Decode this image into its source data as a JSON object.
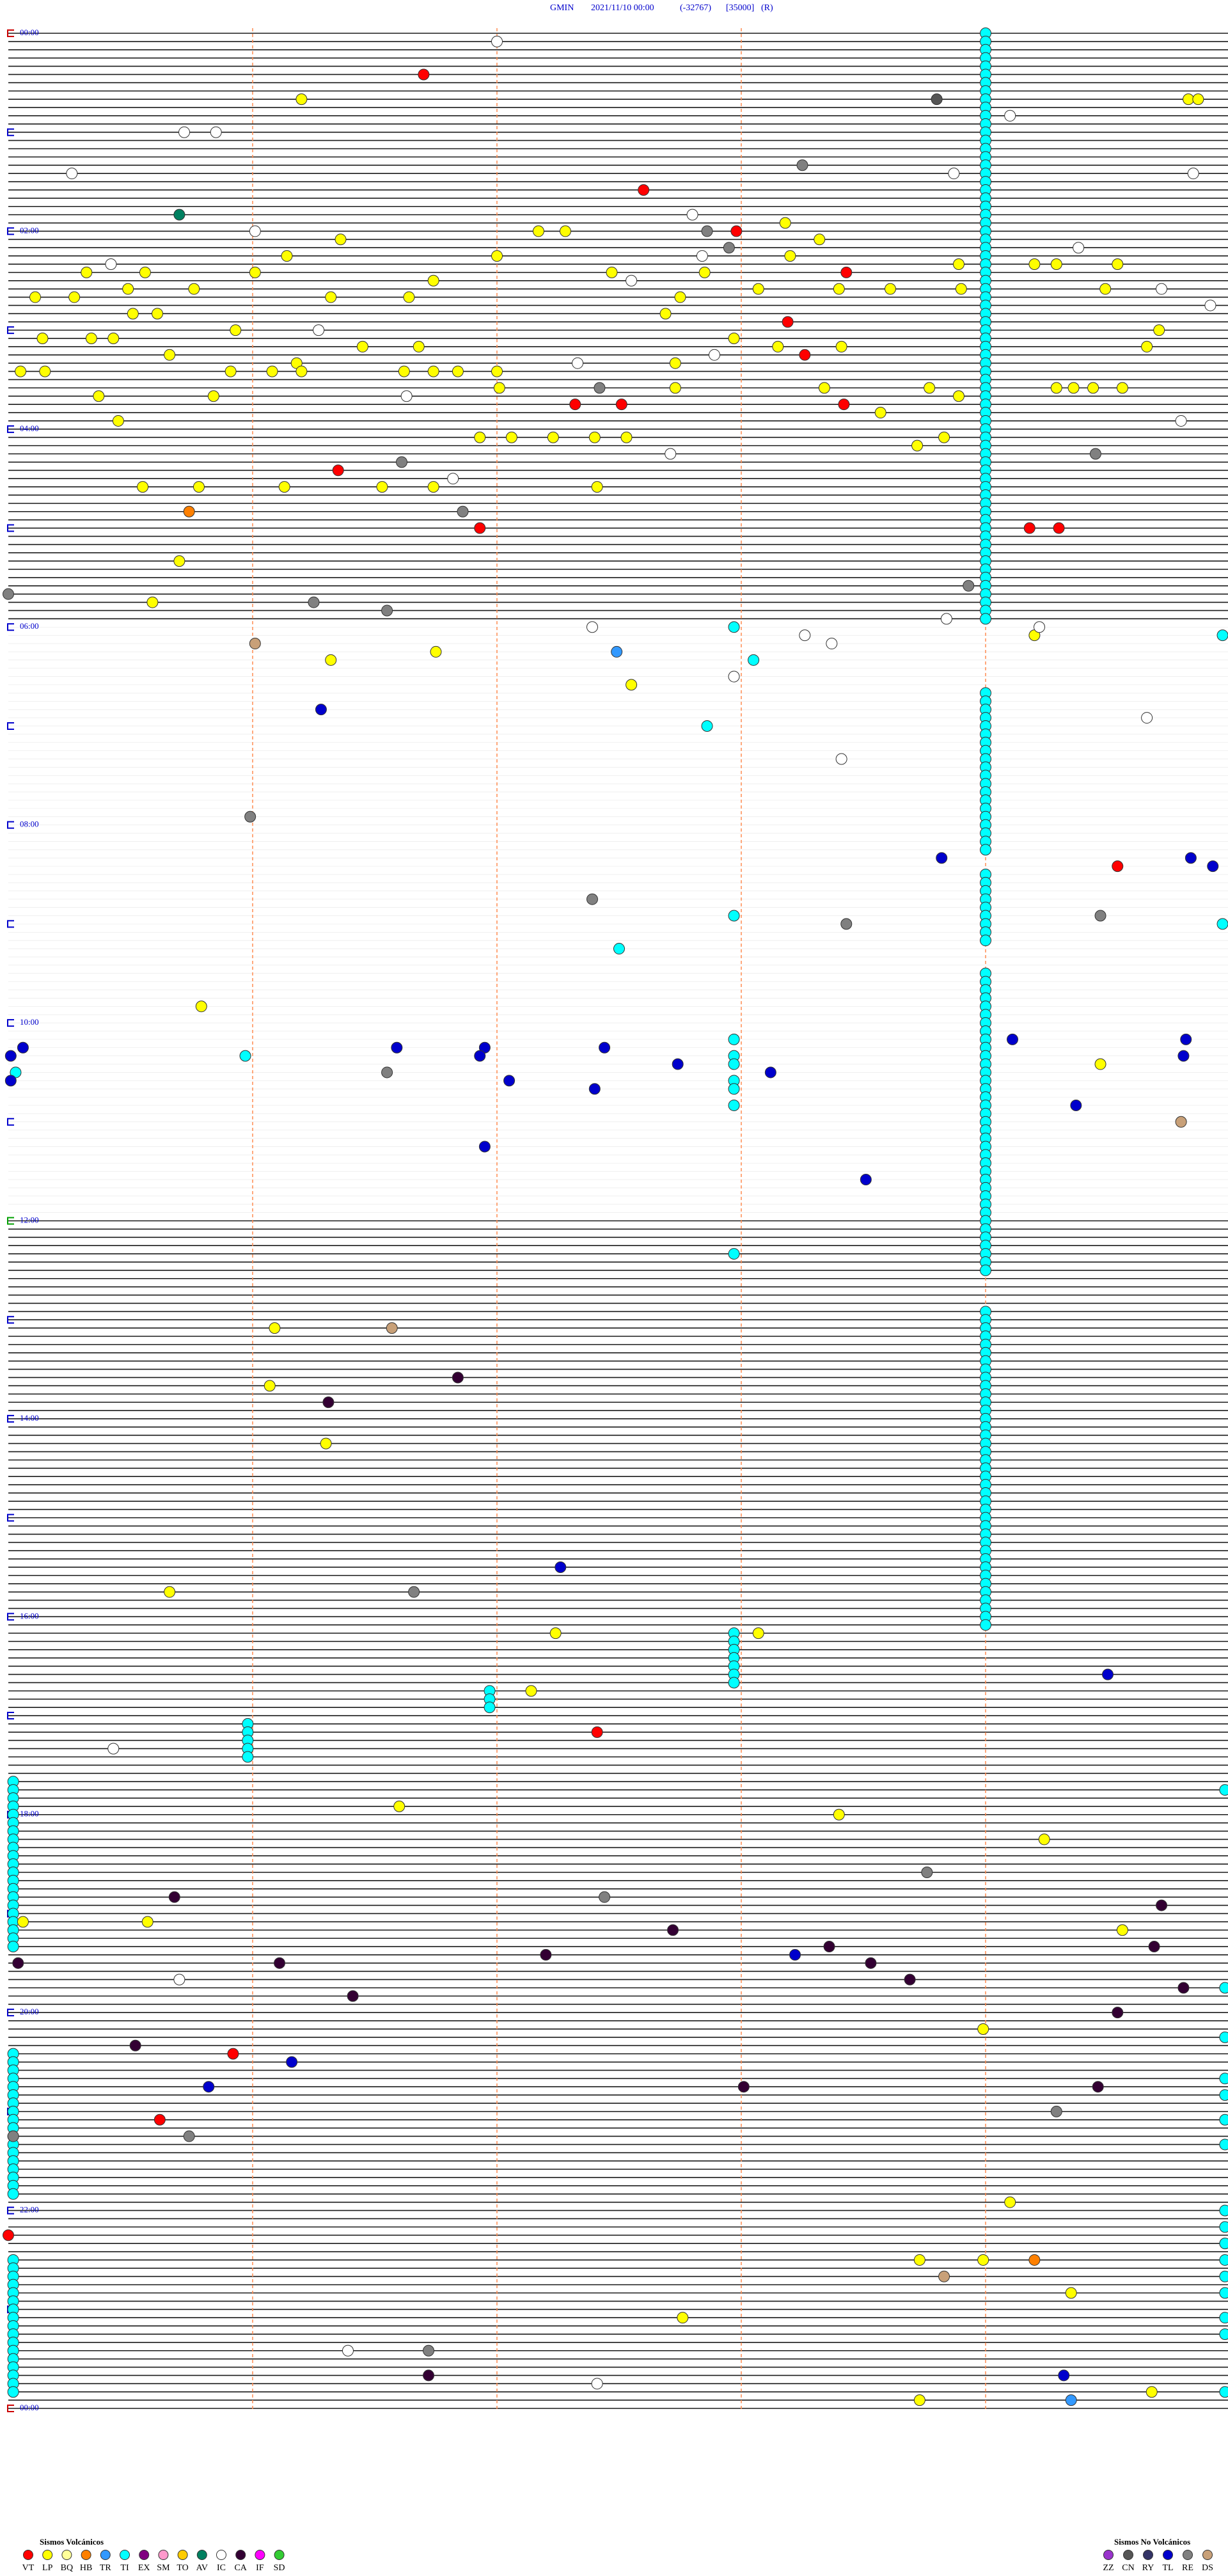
{
  "header": {
    "station": "GMIN",
    "datetime": "2021/11/10 00:00",
    "code": "(-32767)",
    "scale": "[35000]",
    "flag": "(R)"
  },
  "time_labels": [
    "00:00",
    "02:00",
    "04:00",
    "06:00",
    "08:00",
    "10:00",
    "12:00",
    "14:00",
    "16:00",
    "18:00",
    "20:00",
    "22:00",
    "00:00"
  ],
  "volcanic_legend": {
    "title": "Sismos Volcánicos",
    "items": [
      {
        "code": "VT",
        "color": "#ff0000"
      },
      {
        "code": "LP",
        "color": "#ffff00"
      },
      {
        "code": "BQ",
        "color": "#ffff99"
      },
      {
        "code": "HB",
        "color": "#ff8000"
      },
      {
        "code": "TR",
        "color": "#3399ff"
      },
      {
        "code": "TI",
        "color": "#00ffff"
      },
      {
        "code": "EX",
        "color": "#800080"
      },
      {
        "code": "SM",
        "color": "#ff99cc"
      },
      {
        "code": "TO",
        "color": "#ffcc00"
      },
      {
        "code": "AV",
        "color": "#008060"
      },
      {
        "code": "IC",
        "color": "#ffffff"
      },
      {
        "code": "CA",
        "color": "#330033"
      },
      {
        "code": "IF",
        "color": "#ff00ff"
      },
      {
        "code": "SD",
        "color": "#33cc33"
      }
    ]
  },
  "nonvolcanic_legend": {
    "title": "Sismos No Volcánicos",
    "items": [
      {
        "code": "ZZ",
        "color": "#9933cc"
      },
      {
        "code": "CN",
        "color": "#555555"
      },
      {
        "code": "RY",
        "color": "#333366"
      },
      {
        "code": "TL",
        "color": "#0000cc"
      },
      {
        "code": "RE",
        "color": "#808080"
      },
      {
        "code": "DS",
        "color": "#c8a078"
      }
    ]
  },
  "events": {
    "TI": [
      4,
      9,
      14,
      19,
      24,
      29,
      34,
      39,
      44,
      49,
      54,
      59,
      64,
      69,
      74,
      79,
      84,
      89,
      94,
      99,
      104,
      109,
      114,
      119,
      124,
      129,
      134,
      139,
      144,
      149,
      154,
      159,
      164,
      169,
      174,
      179,
      184,
      189,
      194,
      199,
      204,
      209,
      214,
      219,
      224,
      229,
      234,
      239,
      244,
      249,
      254,
      259,
      264,
      269,
      274,
      279,
      284,
      289,
      294,
      299,
      304,
      309,
      314,
      319,
      324,
      329,
      334,
      339,
      344,
      349,
      354,
      359,
      404,
      409,
      414,
      419,
      424,
      429,
      434,
      439,
      444,
      449,
      454,
      459,
      464,
      469,
      474,
      479,
      484,
      489,
      494,
      499,
      514,
      519,
      524,
      529,
      534,
      539,
      544,
      549,
      554,
      574,
      579,
      584,
      589,
      594,
      599,
      604,
      609,
      614,
      619,
      624,
      629,
      634,
      639,
      644,
      649,
      654,
      659,
      664,
      669,
      674,
      679,
      684,
      689,
      694,
      699,
      704,
      709,
      714,
      719,
      724,
      729,
      734,
      739,
      744,
      749,
      754,
      779,
      784,
      789,
      794,
      799,
      804,
      809,
      814,
      819,
      824,
      829,
      834,
      839,
      844,
      849,
      854,
      859,
      864,
      869,
      874,
      879,
      884,
      889,
      894,
      899,
      904,
      909,
      914,
      919,
      924,
      929,
      934,
      939,
      944,
      949,
      954,
      959,
      964,
      969,
      362.97,
      369.97,
      383.05,
      422.86,
      537.97,
      544.97,
      557.5,
      612.97,
      620.97,
      622.97,
      627.97,
      630.03,
      637.97,
      642.97,
      652.97,
      742.97,
      972.97,
      977.97,
      982.97,
      987.97,
      992.97,
      997.97,
      1002.97,
      1006.97,
      1011.97,
      1016.97,
      1025.98,
      1030.98,
      1035.98,
      1040.98,
      1045.98,
      1060.02,
      1065.02,
      1070.02,
      1075.02,
      1080.02,
      1085.02,
      1090.02,
      1095.02,
      1100.02,
      1105.02,
      1110.02,
      1115.02,
      1120.02,
      1125.02,
      1130.02,
      1135.02,
      1140.02,
      1145.02,
      1150.02,
      1155.02,
      1160.02,
      1225.02,
      1230.02,
      1235.02,
      1240.02,
      1245.02,
      1250.02,
      1255.02,
      1260.02,
      1265.02,
      1270.02,
      1275.02,
      1280.02,
      1285.02,
      1290.02,
      1295.02,
      1300.02,
      1305.02,
      1310.02,
      1350.02,
      1355.02,
      1360.02,
      1365.02,
      1370.02,
      1375.02,
      1380.02,
      1385.02,
      1390.02,
      1395.02,
      1400.02,
      1405.02,
      1410.02,
      1415.02,
      1420.02,
      1425.02,
      1430.02,
      1069.98,
      1189.98,
      1219.98,
      1244.98,
      1254.98,
      1269.98,
      1284.98,
      1324.98,
      1334.98,
      1344.98,
      1354.98,
      1364.98,
      1374.98,
      1389.98,
      1399.98,
      1434.98
    ],
    "LP": [
      41.2,
      44.83,
      44.87,
      126.36,
      118.18,
      122.17,
      122.28,
      136.14,
      137.0,
      138.2,
      128.32,
      145.32,
      145.56,
      146.01,
      151.74,
      147.47,
      147.85,
      143.89,
      144.2,
      144.29,
      144.54,
      160.11,
      160.27,
      155.49,
      155.76,
      161.32,
      161.64,
      158.4,
      162.75,
      158.07,
      158.61,
      158.9,
      159.49,
      170.51,
      170.61,
      172.69,
      180.93,
      185.14,
      185.34,
      185.43,
      191.45,
      191.68,
      187.97,
      193.15,
      193.41,
      194.66,
      184.71,
      195.66,
      201.18,
      205.05,
      205.15,
      205.91,
      206.08,
      206.2,
      206.62,
      206.74,
      206.84,
      207.0,
      202.73,
      220.37,
      220.84,
      217.01,
      217.73,
      218.34,
      218.77,
      223.89,
      219.29,
      219.36,
      219.44,
      219.56,
      235.45,
      233.57,
      246.93,
      247.06,
      247.23,
      247.4,
      247.53,
      253.72,
      248.83,
      275.55,
      275.78,
      276.13,
      276.53,
      276.74,
      277.41,
      320.7,
      345.59,
      381.32,
      376.75,
      397.55,
      369.2,
      590.79,
      629.47,
      786.09,
      821.07,
      856.3,
      945.66,
      972.24,
      973.07,
      1007.14,
      1076.6,
      1083.4,
      1099.24,
      1145.06,
      1145.57,
      1154.56,
      1213.99,
      1319.1,
      1353.73,
      1353.99,
      1374.35,
      1387.76,
      1438.73,
      1434.68
    ],
    "VT": [
      26.7,
      97.6,
      122.98,
      148.43,
      178.19,
      198.26,
      227.32,
      227.51,
      228.42,
      266.35,
      301.93,
      304.18,
      304.3,
      509.54,
      1032.41,
      1225.92,
      1265.62,
      1335.0
    ],
    "HB": [
      290.74,
      1354.2
    ],
    "TR": [
      377.49,
      1439.35
    ],
    "AV": [
      110.7
    ],
    "IC": [
      7.0,
      54.1,
      60.72,
      60.85,
      85.26,
      88.87,
      89.85,
      112.8,
      121.01,
      134.38,
      137.84,
      140.42,
      152.55,
      159.72,
      169.92,
      181.27,
      197.89,
      202.33,
      221.63,
      239.8,
      257.71,
      271.82,
      358.84,
      362.39,
      364.22,
      368.26,
      373.37,
      392.97,
      419.66,
      443.41,
      1040.43,
      1180.7,
      1406.39,
      1427.41
    ],
    "CN": [
      43.8
    ],
    "RE": [
      83.25,
      122.86,
      132.95,
      217.42,
      261.61,
      291.86,
      338.93,
      259.45,
      340.0,
      346.25,
      351.55,
      475.99,
      527.39,
      543.43,
      539.47,
      631.55,
      946.66,
      1118.76,
      1132.44,
      1275.74,
      1264.29,
      1275.02,
      1406.72
    ],
    "DS": [
      371.01,
      786.57,
      664.8,
      1363.83
    ],
    "TL": [
      411.28,
      503.82,
      504.84,
      509.93,
      614.11,
      614.82,
      624.81,
      615.06,
      620.01,
      635.01,
      616.59,
      616.95,
      621.93,
      617.44,
      637.05,
      627.74,
      633.12,
      642.4,
      654.37,
      676.95,
      698.51,
      932.26,
      999.5,
      1168.22,
      1231.16,
      1245.82,
      1424.32
    ],
    "CA": [
      816.84,
      831.31,
      1130.68,
      1152.72,
      1163.36,
      1170.04,
      1171.11,
      1167.2,
      1173.53,
      1164.69,
      1183.69,
      1191.41,
      1189.81,
      1139.72,
      1204.54,
      1220.52,
      1248.01,
      1249.46,
      1421.72
    ]
  }
}
